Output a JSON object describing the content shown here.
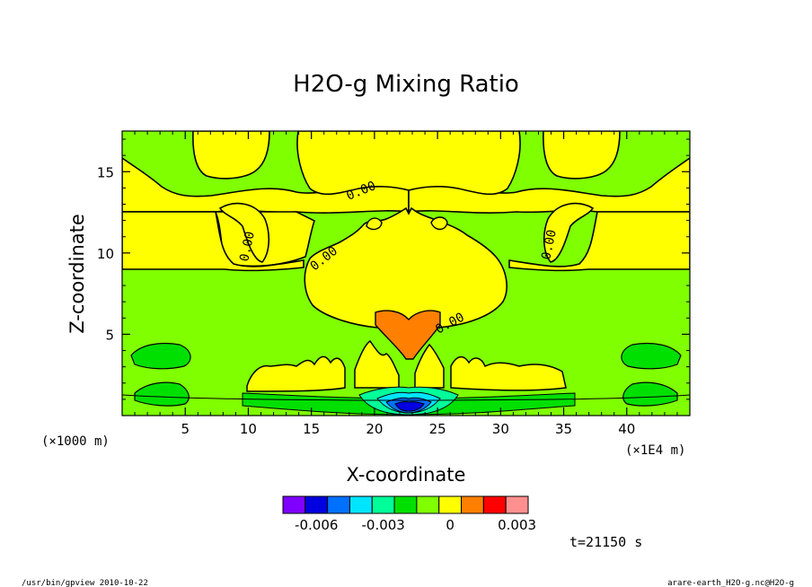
{
  "chart_data": {
    "type": "heatmap",
    "title": "H2O-g Mixing Ratio",
    "xlabel": "X-coordinate",
    "ylabel": "Z-coordinate",
    "x_ticks": [
      "5",
      "10",
      "15",
      "20",
      "25",
      "30",
      "35",
      "40"
    ],
    "y_ticks": [
      "5",
      "10",
      "15"
    ],
    "x_unit_left": "(×1000 m)",
    "x_unit_right": "(×1E4 m)",
    "xlim": [
      0,
      45
    ],
    "ylim": [
      0,
      17.5
    ],
    "contour_labels": [
      "0.00",
      "0.00",
      "0.00",
      "0.00",
      "0.00"
    ],
    "colorbar": {
      "colors": [
        "#7f00ff",
        "#0000e0",
        "#0070ff",
        "#00e5ff",
        "#00ff99",
        "#00e000",
        "#7fff00",
        "#ffff00",
        "#ff7f00",
        "#ff0000",
        "#ff9090"
      ],
      "tick_labels": [
        "-0.006",
        "-0.003",
        "0",
        "0.003"
      ],
      "tick_values": [
        -0.006,
        -0.003,
        0,
        0.003
      ],
      "range": [
        -0.0075,
        0.0035
      ]
    },
    "regions": [
      {
        "fill": "#7fff00",
        "desc": "background"
      },
      {
        "fill": "#ffff00",
        "desc": "upper positive bands and central plume"
      },
      {
        "fill": "#ff7f00",
        "desc": "central core near x=22.5, z=5.5"
      },
      {
        "fill": "#00e000",
        "desc": "low-level negative patches"
      },
      {
        "fill": "#0000e0",
        "desc": "strongest negative near surface at x=22.5"
      }
    ]
  },
  "time_label": "t=21150 s",
  "footer": {
    "left": "/usr/bin/gpview  2010-10-22",
    "right": "arare-earth_H2O-g.nc@H2O-g"
  }
}
